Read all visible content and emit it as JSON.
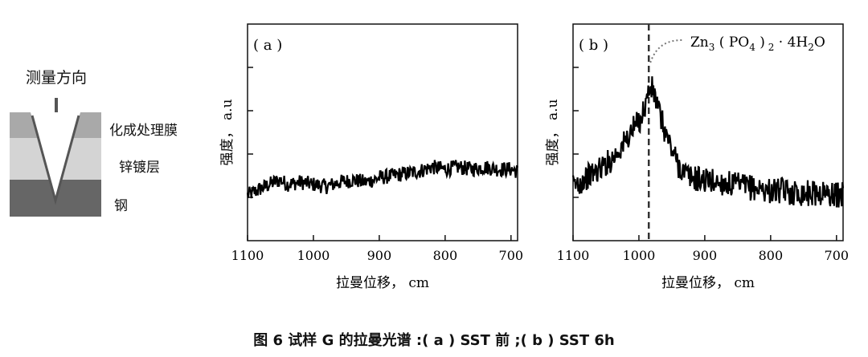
{
  "schematic": {
    "direction_label": "测量方向",
    "layer_labels": [
      "化成处理膜",
      "锌镀层",
      "钢"
    ],
    "colors": {
      "top": "#a9a9a9",
      "middle": "#d4d4d4",
      "bottom": "#666666",
      "arrow": "#555555"
    }
  },
  "caption": "图 6  试样 G 的拉曼光谱 :( a ) SST 前 ;( b ) SST 6h",
  "chart_data": [
    {
      "type": "line",
      "panel_label": "( a )",
      "xlabel": "拉曼位移， cm",
      "ylabel": "强度， a.u",
      "xlim": [
        1100,
        690
      ],
      "x_ticks": [
        1100,
        1000,
        900,
        800,
        700
      ],
      "ylim": [
        0,
        1
      ],
      "series": [
        {
          "x": [
            1100,
            1080,
            1060,
            1050,
            1040,
            1020,
            1000,
            980,
            960,
            940,
            920,
            900,
            880,
            860,
            840,
            820,
            800,
            780,
            760,
            740,
            720,
            700,
            690
          ],
          "y": [
            0.21,
            0.24,
            0.27,
            0.28,
            0.26,
            0.27,
            0.26,
            0.25,
            0.27,
            0.28,
            0.27,
            0.29,
            0.3,
            0.31,
            0.32,
            0.34,
            0.33,
            0.34,
            0.33,
            0.34,
            0.33,
            0.33,
            0.32
          ]
        }
      ]
    },
    {
      "type": "line",
      "panel_label": "( b )",
      "xlabel": "拉曼位移， cm",
      "ylabel": "强度， a.u",
      "xlim": [
        1100,
        690
      ],
      "x_ticks": [
        1100,
        1000,
        900,
        800,
        700
      ],
      "ylim": [
        0,
        1
      ],
      "annotation": {
        "x": 985,
        "label_prefix": "Zn",
        "label_full": "Zn3 ( PO4 ) 2 · 4H2O"
      },
      "series": [
        {
          "x": [
            1100,
            1080,
            1060,
            1040,
            1020,
            1010,
            1000,
            995,
            990,
            985,
            980,
            975,
            970,
            960,
            950,
            940,
            930,
            920,
            900,
            880,
            860,
            840,
            820,
            800,
            780,
            760,
            740,
            720,
            700,
            690
          ],
          "y": [
            0.25,
            0.29,
            0.33,
            0.38,
            0.46,
            0.51,
            0.55,
            0.58,
            0.63,
            0.69,
            0.7,
            0.66,
            0.6,
            0.5,
            0.42,
            0.35,
            0.31,
            0.29,
            0.28,
            0.27,
            0.26,
            0.25,
            0.24,
            0.23,
            0.23,
            0.22,
            0.22,
            0.22,
            0.21,
            0.21
          ]
        }
      ]
    }
  ]
}
